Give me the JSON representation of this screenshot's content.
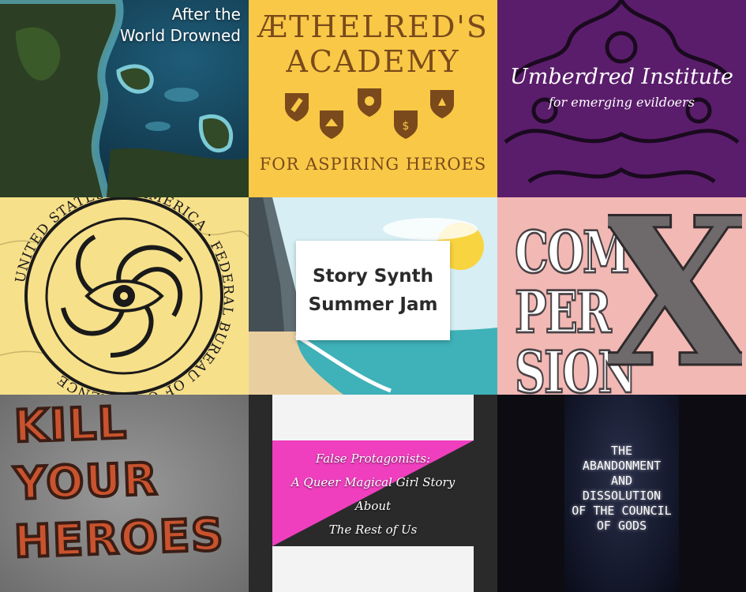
{
  "tiles": [
    {
      "title_line1": "After the",
      "title_line2": "World Drowned"
    },
    {
      "title_line1": "ÆTHELRED'S",
      "title_line2": "ACADEMY",
      "subtitle": "FOR ASPIRING HEROES"
    },
    {
      "title": "Umberdred Institute",
      "subtitle": "for emerging evildoers"
    },
    {
      "seal_text": "UNITED STATES OF AMERICA · FEDERAL BUREAU OF COHERENCE"
    },
    {
      "card_line1": "Story Synth",
      "card_line2": "Summer Jam"
    },
    {
      "letters": [
        "COM",
        "PER",
        "SION"
      ],
      "big_letter": "X"
    },
    {
      "line1": "KILL",
      "line2": "YOUR",
      "line3": "HEROES"
    },
    {
      "line1": "False Protagonists:",
      "line2": "A Queer Magical Girl Story",
      "line3": "About",
      "line4": "The Rest of Us"
    },
    {
      "lines": [
        "THE",
        "ABANDONMENT",
        "AND",
        "DISSOLUTION",
        "OF THE COUNCIL",
        "OF GODS"
      ]
    }
  ],
  "colors": {
    "aethelred_bg": "#f9c846",
    "aethelred_brown": "#7a4a1c",
    "umberdred_bg": "#5a1d6b",
    "fbc_bg": "#f7e08a",
    "compersion_bg": "#f2b8b4",
    "false_pink": "#ef3fbf"
  }
}
